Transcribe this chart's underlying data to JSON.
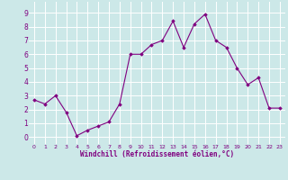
{
  "x": [
    0,
    1,
    2,
    3,
    4,
    5,
    6,
    7,
    8,
    9,
    10,
    11,
    12,
    13,
    14,
    15,
    16,
    17,
    18,
    19,
    20,
    21,
    22,
    23
  ],
  "y": [
    2.7,
    2.4,
    3.0,
    1.8,
    0.1,
    0.5,
    0.8,
    1.1,
    2.4,
    6.0,
    6.0,
    6.7,
    7.0,
    8.4,
    6.5,
    8.2,
    8.9,
    7.0,
    6.5,
    5.0,
    3.8,
    4.3,
    2.1,
    2.1
  ],
  "xlabel": "Windchill (Refroidissement éolien,°C)",
  "xlim": [
    -0.5,
    23.5
  ],
  "ylim": [
    -0.5,
    9.8
  ],
  "yticks": [
    0,
    1,
    2,
    3,
    4,
    5,
    6,
    7,
    8,
    9
  ],
  "xticks": [
    0,
    1,
    2,
    3,
    4,
    5,
    6,
    7,
    8,
    9,
    10,
    11,
    12,
    13,
    14,
    15,
    16,
    17,
    18,
    19,
    20,
    21,
    22,
    23
  ],
  "line_color": "#800080",
  "marker_color": "#800080",
  "bg_color": "#cce8e8",
  "grid_color": "#ffffff",
  "xlabel_color": "#800080",
  "tick_color": "#800080",
  "border_color": "#800080"
}
